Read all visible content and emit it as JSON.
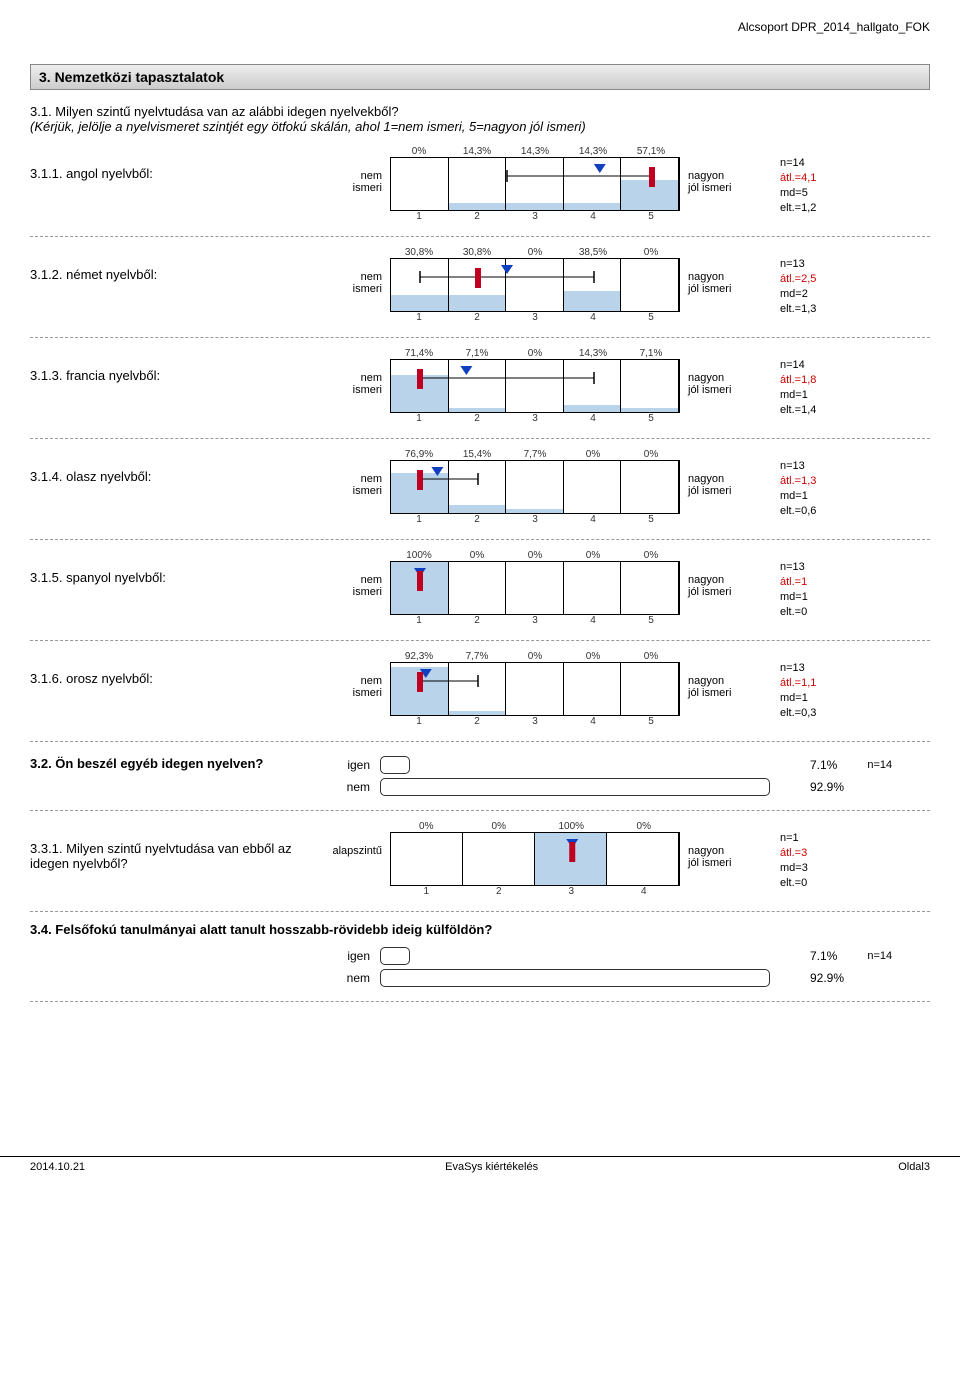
{
  "header_right": "Alcsoport DPR_2014_hallgato_FOK",
  "section_title": "3. Nemzetközi tapasztalatok",
  "intro_main": "3.1. Milyen szintű nyelvtudása van az alábbi idegen nyelvekből?",
  "intro_sub": "(Kérjük, jelölje a nyelvismeret szintjét egy ötfokú skálán, ahol 1=nem ismeri, 5=nagyon jól ismeri)",
  "left5": "nem ismeri",
  "right5": "nagyon jól ismeri",
  "left4": "alapszintű",
  "right4": "nagyon jól ismeri",
  "axis5": [
    "1",
    "2",
    "3",
    "4",
    "5"
  ],
  "axis4": [
    "1",
    "2",
    "3",
    "4"
  ],
  "scale_charts": [
    {
      "label": "3.1.1. angol nyelvből:",
      "pcts": [
        "0%",
        "14,3%",
        "14,3%",
        "14,3%",
        "57,1%"
      ],
      "vals": [
        0,
        14.3,
        14.3,
        14.3,
        57.1
      ],
      "mean": 4.1,
      "whisk_lo": 2.5,
      "whisk_hi": 5,
      "med": 5,
      "stats": {
        "n": "n=14",
        "atl": "átl.=4,1",
        "md": "md=5",
        "elt": "elt.=1,2"
      }
    },
    {
      "label": "3.1.2. német nyelvből:",
      "pcts": [
        "30,8%",
        "30,8%",
        "0%",
        "38,5%",
        "0%"
      ],
      "vals": [
        30.8,
        30.8,
        0,
        38.5,
        0
      ],
      "mean": 2.5,
      "whisk_lo": 1,
      "whisk_hi": 4,
      "med": 2,
      "stats": {
        "n": "n=13",
        "atl": "átl.=2,5",
        "md": "md=2",
        "elt": "elt.=1,3"
      }
    },
    {
      "label": "3.1.3. francia nyelvből:",
      "pcts": [
        "71,4%",
        "7,1%",
        "0%",
        "14,3%",
        "7,1%"
      ],
      "vals": [
        71.4,
        7.1,
        0,
        14.3,
        7.1
      ],
      "mean": 1.8,
      "whisk_lo": 1,
      "whisk_hi": 4,
      "med": 1,
      "stats": {
        "n": "n=14",
        "atl": "átl.=1,8",
        "md": "md=1",
        "elt": "elt.=1,4"
      }
    },
    {
      "label": "3.1.4. olasz nyelvből:",
      "pcts": [
        "76,9%",
        "15,4%",
        "7,7%",
        "0%",
        "0%"
      ],
      "vals": [
        76.9,
        15.4,
        7.7,
        0,
        0
      ],
      "mean": 1.3,
      "whisk_lo": 1,
      "whisk_hi": 2,
      "med": 1,
      "stats": {
        "n": "n=13",
        "atl": "átl.=1,3",
        "md": "md=1",
        "elt": "elt.=0,6"
      }
    },
    {
      "label": "3.1.5. spanyol nyelvből:",
      "pcts": [
        "100%",
        "0%",
        "0%",
        "0%",
        "0%"
      ],
      "vals": [
        100,
        0,
        0,
        0,
        0
      ],
      "mean": 1,
      "whisk_lo": 1,
      "whisk_hi": 1,
      "med": 1,
      "stats": {
        "n": "n=13",
        "atl": "átl.=1",
        "md": "md=1",
        "elt.=0": "elt.=0",
        "elt": "elt.=0"
      }
    },
    {
      "label": "3.1.6. orosz nyelvből:",
      "pcts": [
        "92,3%",
        "7,7%",
        "0%",
        "0%",
        "0%"
      ],
      "vals": [
        92.3,
        7.7,
        0,
        0,
        0
      ],
      "mean": 1.1,
      "whisk_lo": 1,
      "whisk_hi": 2,
      "med": 1,
      "stats": {
        "n": "n=13",
        "atl": "átl.=1,1",
        "md": "md=1",
        "elt": "elt.=0,3"
      }
    }
  ],
  "q32": {
    "label": "3.2. Ön beszél egyéb idegen nyelven?",
    "rows": [
      {
        "name": "igen",
        "pct": 7.1,
        "pct_txt": "7.1%"
      },
      {
        "name": "nem",
        "pct": 92.9,
        "pct_txt": "92.9%"
      }
    ],
    "n": "n=14"
  },
  "q331": {
    "label": "3.3.1. Milyen szintű nyelvtudása van ebből az idegen nyelvből?",
    "pcts": [
      "0%",
      "0%",
      "100%",
      "0%"
    ],
    "vals": [
      0,
      0,
      100,
      0
    ],
    "mean": 3,
    "whisk_lo": 3,
    "whisk_hi": 3,
    "med": 3,
    "stats": {
      "n": "n=1",
      "atl": "átl.=3",
      "md": "md=3",
      "elt": "elt.=0"
    }
  },
  "q34": {
    "label": "3.4. Felsőfokú tanulmányai alatt tanult hosszabb-rövidebb ideig külföldön?",
    "rows": [
      {
        "name": "igen",
        "pct": 7.1,
        "pct_txt": "7.1%"
      },
      {
        "name": "nem",
        "pct": 92.9,
        "pct_txt": "92.9%"
      }
    ],
    "n": "n=14"
  },
  "footer": {
    "left": "2014.10.21",
    "center": "EvaSys kiértékelés",
    "right": "Oldal3"
  },
  "colors": {
    "bar": "#b9d4ea",
    "mean": "#1040c0",
    "median": "#c00020",
    "whisker": "#000"
  }
}
